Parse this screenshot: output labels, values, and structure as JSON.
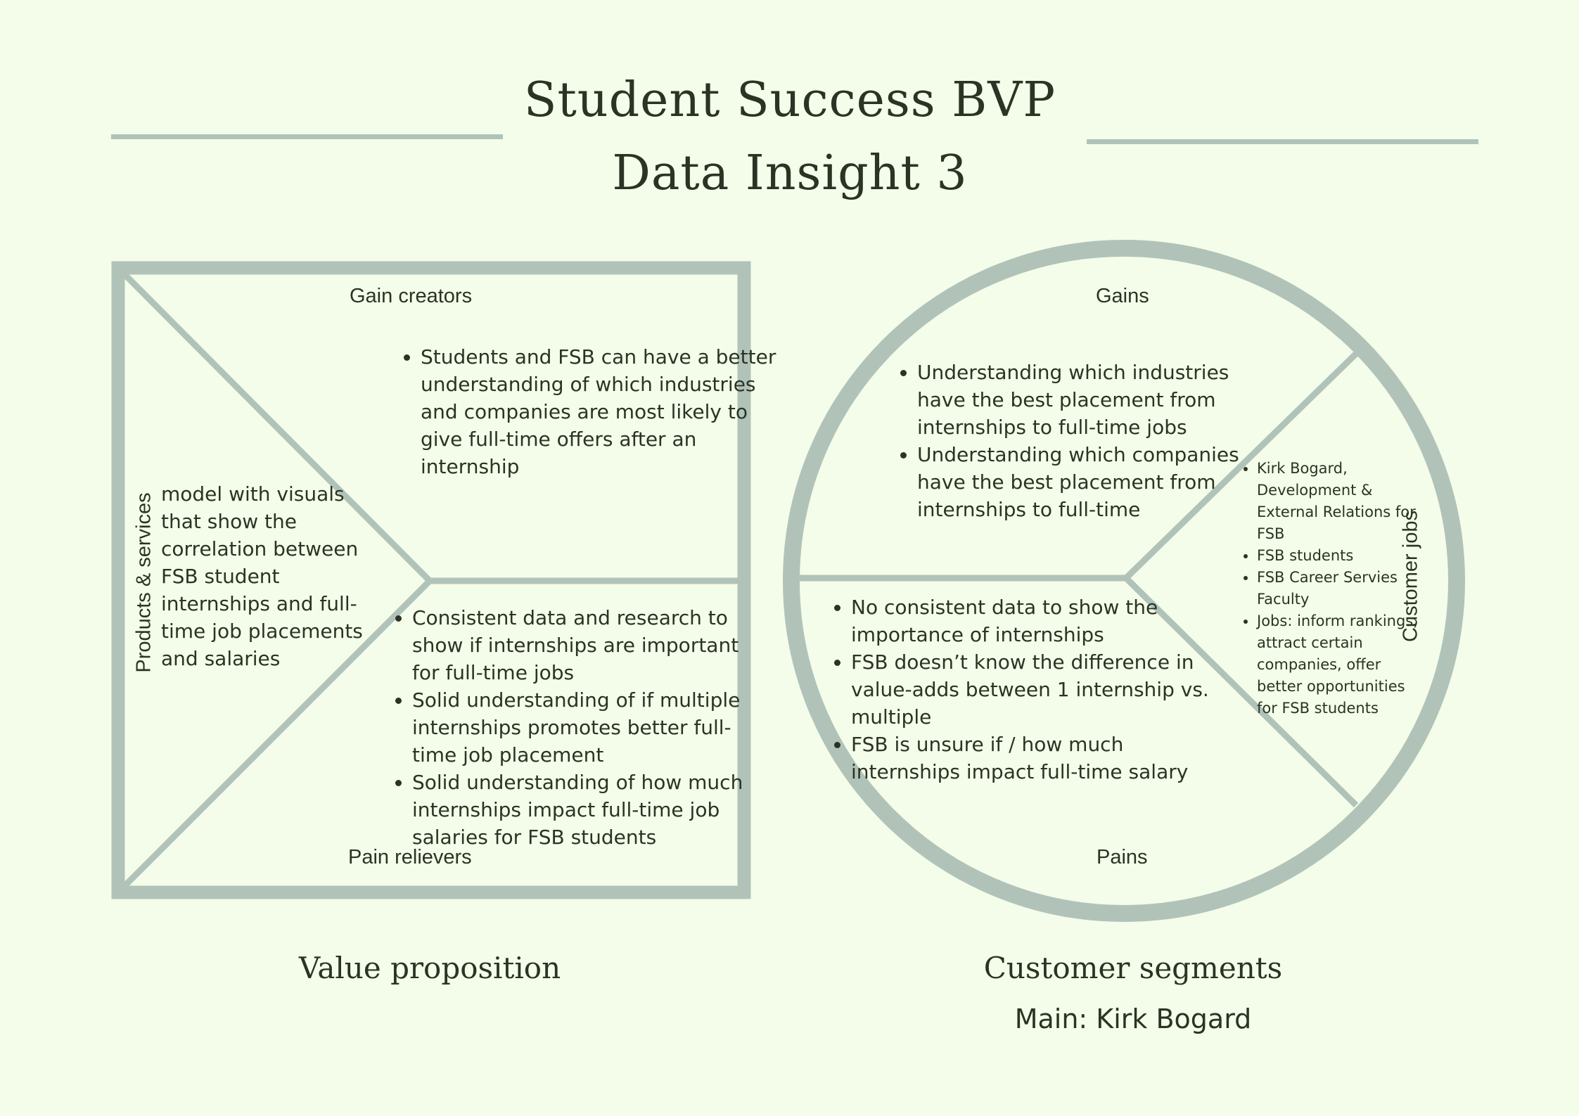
{
  "header": {
    "title_line1": "Student Success BVP",
    "title_line2": "Data Insight 3"
  },
  "value_proposition": {
    "gain_creators_label": "Gain creators",
    "gain_creators": [
      "Students and FSB can have a better understanding of which industries and companies are most likely to give full-time offers after an internship"
    ],
    "products_services_label": "Products & services",
    "products_services_text": "model with visuals that show the correlation between FSB student internships and full-time job placements and salaries",
    "pain_relievers_label": "Pain relievers",
    "pain_relievers": [
      "Consistent data and research to show if internships are important for full-time jobs",
      "Solid understanding of if multiple internships promotes better full-time job placement",
      "Solid understanding of how much internships impact full-time job salaries for FSB students"
    ],
    "caption": "Value proposition"
  },
  "customer_segments": {
    "gains_label": "Gains",
    "gains": [
      "Understanding which industries have the best placement from internships to full-time jobs",
      "Understanding which companies have the best placement from internships to full-time"
    ],
    "customer_jobs_label": "Customer jobs",
    "customer_jobs": [
      "Kirk Bogard, Development & External Relations for FSB",
      "FSB students",
      "FSB Career Servies Faculty",
      "Jobs: inform rankings, attract certain companies, offer better opportunities for FSB students"
    ],
    "pains_label": "Pains",
    "pains": [
      "No consistent data to show the importance of internships",
      "FSB doesn’t know the difference in value-adds between 1 internship vs. multiple",
      "FSB is unsure if / how much internships impact full-time salary"
    ],
    "caption": "Customer segments",
    "subcaption": "Main: Kirk Bogard"
  },
  "colors": {
    "background": "#f4fde9",
    "shape": "#b1c3b9",
    "text": "#2b3324"
  }
}
